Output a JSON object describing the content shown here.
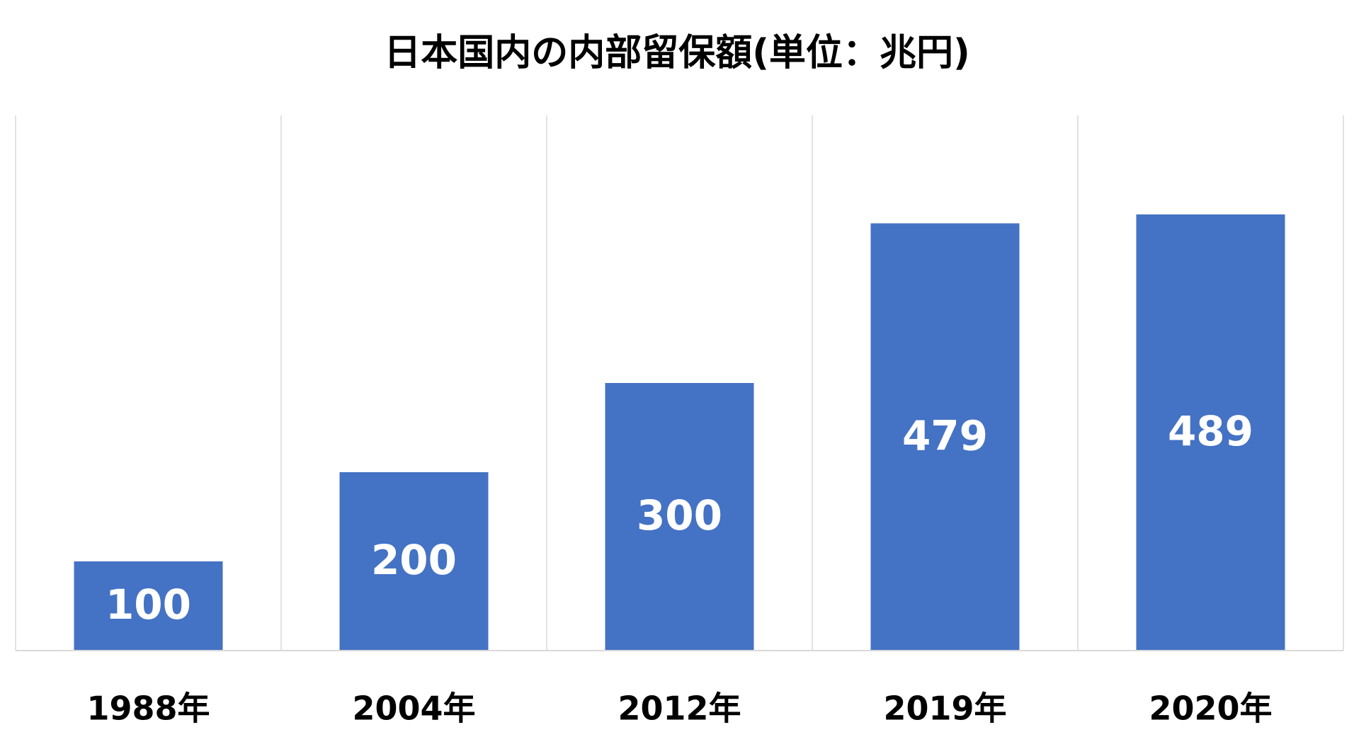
{
  "chart_data": {
    "type": "bar",
    "title": "日本国内の内部留保額(単位：兆円)",
    "categories": [
      "1988年",
      "2004年",
      "2012年",
      "2019年",
      "2020年"
    ],
    "values": [
      100,
      200,
      300,
      479,
      489
    ],
    "color": "#4472c4",
    "ylim": [
      0,
      600
    ]
  }
}
